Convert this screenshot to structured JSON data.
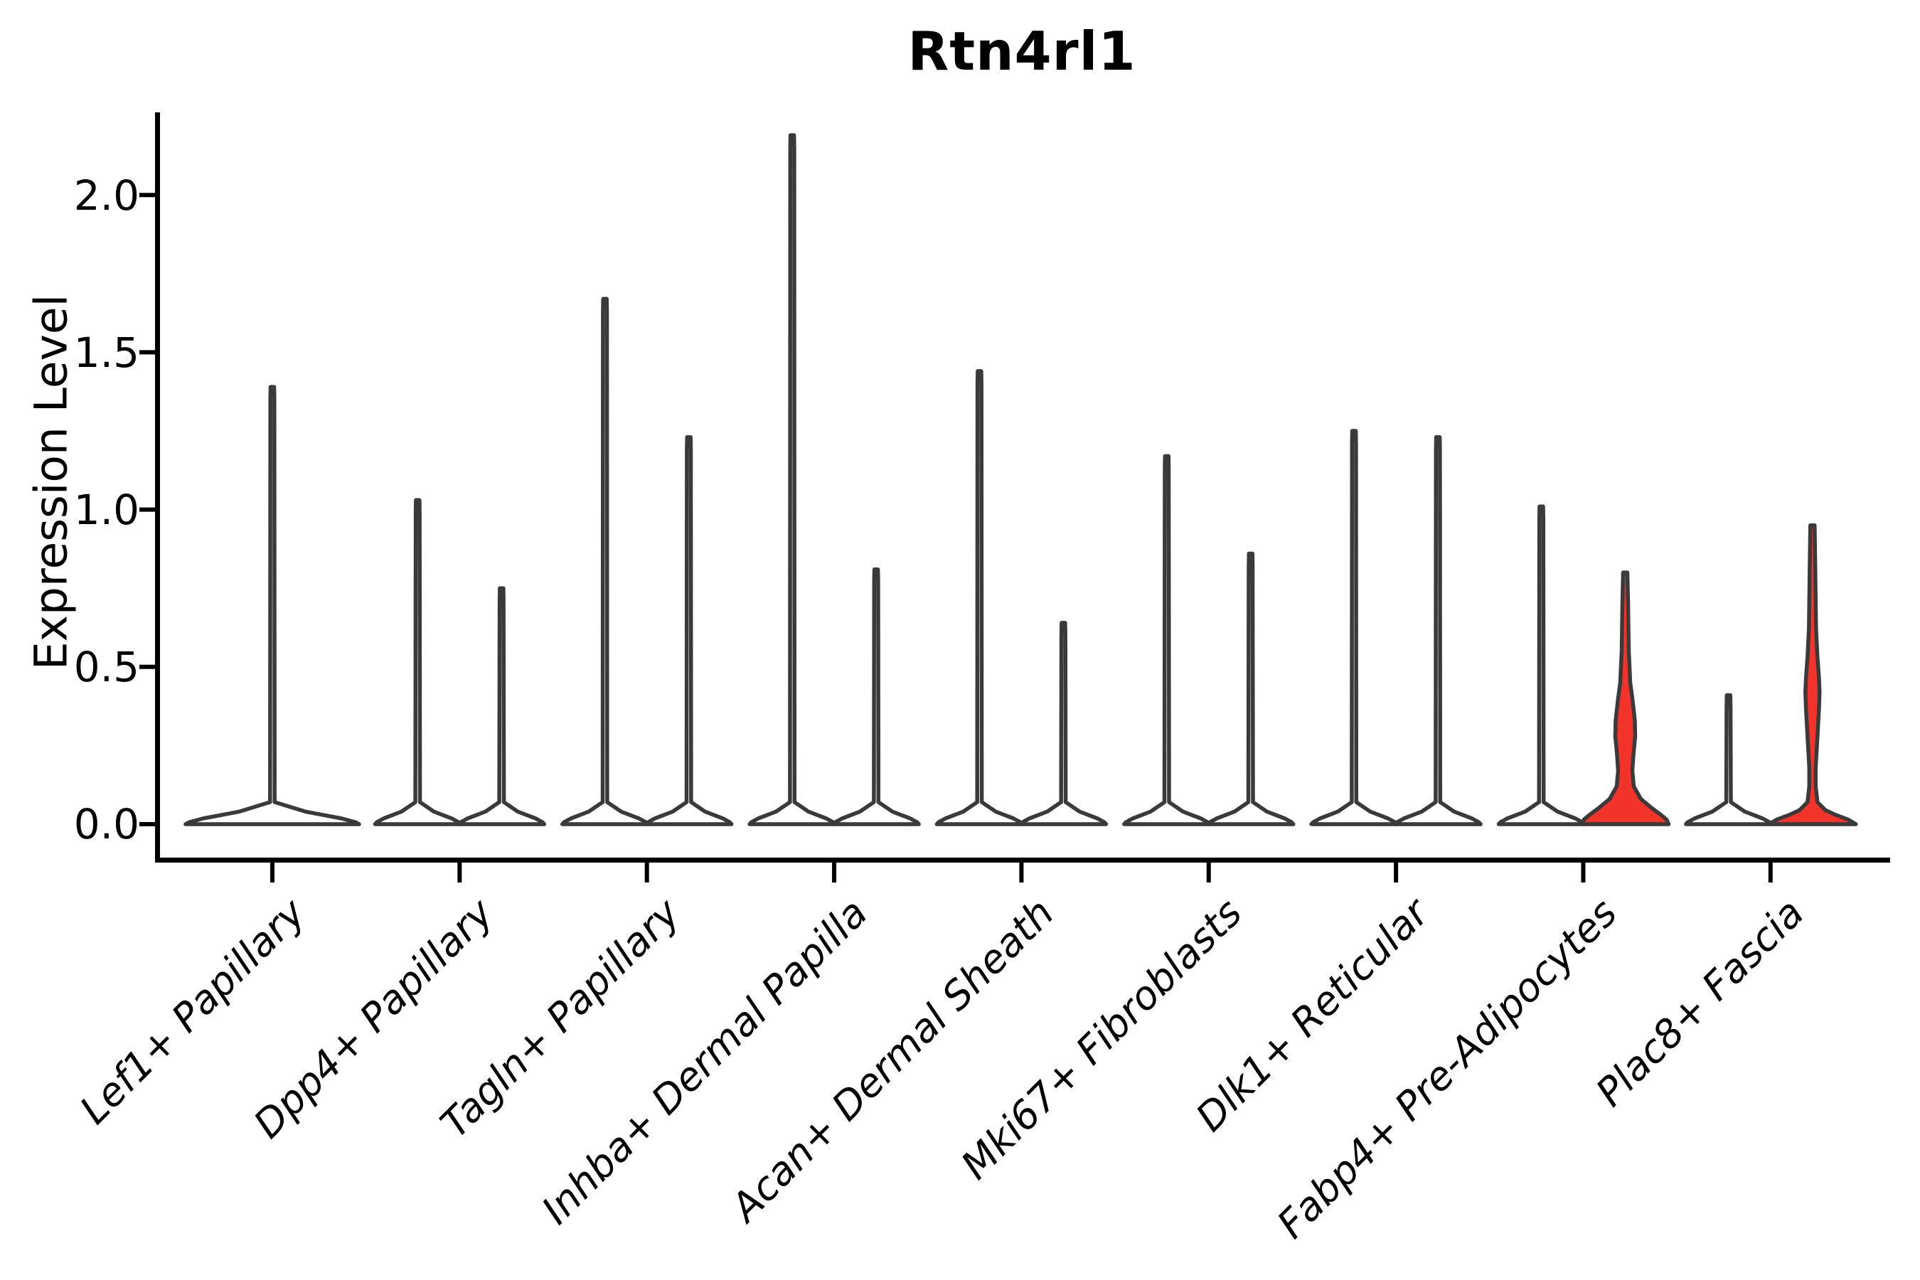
{
  "title": "Rtn4rl1",
  "y_axis": {
    "label": "Expression Level",
    "ticks": [
      "2.0",
      "1.5",
      "1.0",
      "0.5",
      "0.0"
    ],
    "tick_values": [
      2.0,
      1.5,
      1.0,
      0.5,
      0.0
    ]
  },
  "colors": {
    "violin_outline": "#3a3a3a",
    "highlight_fill": "#f3342b",
    "axis": "#000000",
    "background": "#ffffff"
  },
  "chart_data": {
    "type": "violin",
    "title": "Rtn4rl1",
    "xlabel": "",
    "ylabel": "Expression Level",
    "ylim": [
      0,
      2.26
    ],
    "yticks": [
      0.0,
      0.5,
      1.0,
      1.5,
      2.0
    ],
    "grid": false,
    "legend": false,
    "categories": [
      "Lef1+ Papillary",
      "Dpp4+ Papillary",
      "Tagln+ Papillary",
      "Inhba+ Dermal Papilla",
      "Acan+ Dermal Sheath",
      "Mki67+ Fibroblasts",
      "Dlk1+ Reticular",
      "Fabp4+ Pre-Adipocytes",
      "Plac8+ Fascia"
    ],
    "violins": [
      {
        "category": "Lef1+ Papillary",
        "cat": 0,
        "pos": "full",
        "kind": "spike",
        "max_expression": 1.39,
        "fill": "#ffffff"
      },
      {
        "category": "Dpp4+ Papillary",
        "cat": 1,
        "pos": "left",
        "kind": "spike",
        "max_expression": 1.03,
        "fill": "#ffffff"
      },
      {
        "category": "Dpp4+ Papillary",
        "cat": 1,
        "pos": "right",
        "kind": "spike",
        "max_expression": 0.75,
        "fill": "#ffffff"
      },
      {
        "category": "Tagln+ Papillary",
        "cat": 2,
        "pos": "left",
        "kind": "spike",
        "max_expression": 1.67,
        "fill": "#ffffff"
      },
      {
        "category": "Tagln+ Papillary",
        "cat": 2,
        "pos": "right",
        "kind": "spike",
        "max_expression": 1.23,
        "fill": "#ffffff"
      },
      {
        "category": "Inhba+ Dermal Papilla",
        "cat": 3,
        "pos": "left",
        "kind": "spike",
        "max_expression": 2.19,
        "fill": "#ffffff"
      },
      {
        "category": "Inhba+ Dermal Papilla",
        "cat": 3,
        "pos": "right",
        "kind": "spike",
        "max_expression": 0.81,
        "fill": "#ffffff"
      },
      {
        "category": "Acan+ Dermal Sheath",
        "cat": 4,
        "pos": "left",
        "kind": "spike",
        "max_expression": 1.44,
        "fill": "#ffffff"
      },
      {
        "category": "Acan+ Dermal Sheath",
        "cat": 4,
        "pos": "right",
        "kind": "spike",
        "max_expression": 0.64,
        "fill": "#ffffff"
      },
      {
        "category": "Mki67+ Fibroblasts",
        "cat": 5,
        "pos": "left",
        "kind": "spike",
        "max_expression": 1.17,
        "fill": "#ffffff"
      },
      {
        "category": "Mki67+ Fibroblasts",
        "cat": 5,
        "pos": "right",
        "kind": "spike",
        "max_expression": 0.86,
        "fill": "#ffffff"
      },
      {
        "category": "Dlk1+ Reticular",
        "cat": 6,
        "pos": "left",
        "kind": "spike",
        "max_expression": 1.25,
        "fill": "#ffffff"
      },
      {
        "category": "Dlk1+ Reticular",
        "cat": 6,
        "pos": "right",
        "kind": "spike",
        "max_expression": 1.23,
        "fill": "#ffffff"
      },
      {
        "category": "Fabp4+ Pre-Adipocytes",
        "cat": 7,
        "pos": "left",
        "kind": "spike",
        "max_expression": 1.01,
        "fill": "#ffffff"
      },
      {
        "category": "Fabp4+ Pre-Adipocytes",
        "cat": 7,
        "pos": "right",
        "kind": "shaped",
        "max_expression": 0.8,
        "fill": "#f3342b",
        "profile": [
          [
            0.8,
            3
          ],
          [
            0.7,
            4
          ],
          [
            0.55,
            5
          ],
          [
            0.45,
            7
          ],
          [
            0.4,
            10
          ],
          [
            0.33,
            13.5
          ],
          [
            0.28,
            14
          ],
          [
            0.22,
            11.5
          ],
          [
            0.17,
            10
          ],
          [
            0.12,
            12
          ],
          [
            0.08,
            22
          ],
          [
            0.05,
            38
          ],
          [
            0.03,
            50
          ],
          [
            0.015,
            58
          ],
          [
            0,
            61
          ]
        ]
      },
      {
        "category": "Plac8+ Fascia",
        "cat": 8,
        "pos": "left",
        "kind": "spike",
        "max_expression": 0.41,
        "fill": "#ffffff"
      },
      {
        "category": "Plac8+ Fascia",
        "cat": 8,
        "pos": "right",
        "kind": "shaped",
        "max_expression": 0.95,
        "fill": "#f3342b",
        "profile": [
          [
            0.95,
            3
          ],
          [
            0.8,
            4
          ],
          [
            0.62,
            5
          ],
          [
            0.53,
            7
          ],
          [
            0.47,
            9
          ],
          [
            0.42,
            10
          ],
          [
            0.36,
            9
          ],
          [
            0.3,
            7.5
          ],
          [
            0.24,
            6
          ],
          [
            0.18,
            4.5
          ],
          [
            0.12,
            4.5
          ],
          [
            0.07,
            7
          ],
          [
            0.045,
            18
          ],
          [
            0.03,
            32
          ],
          [
            0.015,
            50
          ],
          [
            0,
            61
          ]
        ]
      }
    ]
  }
}
